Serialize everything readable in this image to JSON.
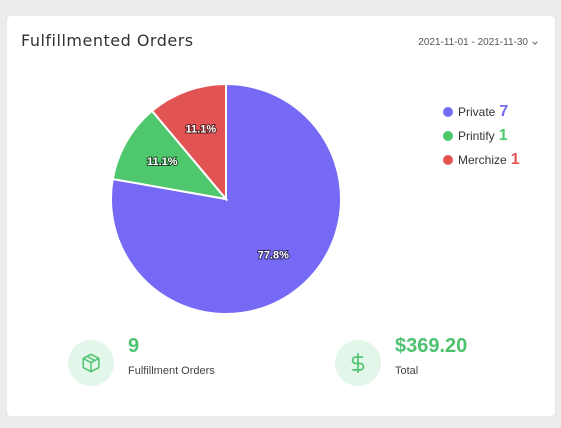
{
  "card": {
    "title": "Fulfillmented Orders",
    "date_range": "2021-11-01 - 2021-11-30"
  },
  "chart_data": {
    "type": "pie",
    "slices": [
      {
        "name": "Private",
        "value": 7,
        "percent_label": "77.8%",
        "color": "#7569f5"
      },
      {
        "name": "Printify",
        "value": 1,
        "percent_label": "11.1%",
        "color": "#4fc86d"
      },
      {
        "name": "Merchize",
        "value": 1,
        "percent_label": "11.1%",
        "color": "#e25353"
      }
    ],
    "legend_position": "right"
  },
  "legend": {
    "items": [
      {
        "label": "Private",
        "count": "7",
        "color": "#7569f5"
      },
      {
        "label": "Printify",
        "count": "1",
        "color": "#4fc86d"
      },
      {
        "label": "Merchize",
        "count": "1",
        "color": "#e25353"
      }
    ]
  },
  "stats": {
    "orders": {
      "value": "9",
      "label": "Fulfillment Orders",
      "icon": "box-icon"
    },
    "total": {
      "value": "$369.20",
      "label": "Total",
      "icon": "dollar-icon"
    }
  },
  "colors": {
    "accent_green": "#4ec26e",
    "icon_bg": "#e3f6ea"
  }
}
